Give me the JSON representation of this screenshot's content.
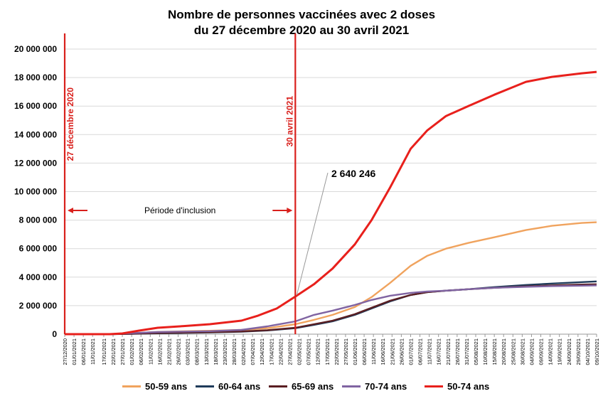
{
  "title_line1": "Nombre de personnes vaccinées avec 2 doses",
  "title_line2": "du 27 décembre 2020 au 30 avril 2021",
  "annotations": {
    "start_label": "27 décembre 2020",
    "end_label": "30 avril 2021",
    "period_label": "Période d'inclusion",
    "callout_value": "2 640 246"
  },
  "colors": {
    "50-59": "#f0a35e",
    "60-64": "#1f3b5a",
    "65-69": "#5a1e22",
    "70-74": "#8064a2",
    "50-74": "#e8201c",
    "vline": "#d9201c"
  },
  "chart_data": {
    "type": "line",
    "title": "Nombre de personnes vaccinées avec 2 doses du 27 décembre 2020 au 30 avril 2021",
    "xlabel": "",
    "ylabel": "",
    "ylim": [
      0,
      20000000
    ],
    "y_ticks": [
      "0",
      "2 000 000",
      "4 000 000",
      "6 000 000",
      "8 000 000",
      "10 000 000",
      "12 000 000",
      "14 000 000",
      "16 000 000",
      "18 000 000",
      "20 000 000"
    ],
    "x_ticks": [
      "27/12/2020",
      "01/01/2021",
      "06/01/2021",
      "11/01/2021",
      "17/01/2021",
      "22/01/2021",
      "27/01/2021",
      "01/02/2021",
      "06/02/2021",
      "11/02/2021",
      "16/02/2021",
      "21/02/2021",
      "26/02/2021",
      "03/03/2021",
      "08/03/2021",
      "13/03/2021",
      "18/03/2021",
      "23/03/2021",
      "28/03/2021",
      "02/04/2021",
      "07/04/2021",
      "12/04/2021",
      "17/04/2021",
      "22/04/2021",
      "27/04/2021",
      "02/05/2021",
      "07/05/2021",
      "12/05/2021",
      "17/05/2021",
      "22/05/2021",
      "27/05/2021",
      "01/06/2021",
      "06/06/2021",
      "11/06/2021",
      "16/06/2021",
      "21/06/2021",
      "26/06/2021",
      "01/07/2021",
      "06/07/2021",
      "11/07/2021",
      "16/07/2021",
      "21/07/2021",
      "26/07/2021",
      "31/07/2021",
      "05/08/2021",
      "10/08/2021",
      "15/08/2021",
      "20/08/2021",
      "25/08/2021",
      "30/08/2021",
      "04/09/2021",
      "09/09/2021",
      "14/09/2021",
      "19/09/2021",
      "24/09/2021",
      "29/09/2021",
      "04/10/2021",
      "09/10/2021"
    ],
    "grid": true,
    "legend_position": "bottom",
    "vertical_lines": [
      {
        "x": "2020-12-27",
        "label": "27 décembre 2020"
      },
      {
        "x": "2021-04-30",
        "label": "30 avril 2021"
      }
    ],
    "callout": {
      "series": "50-74 ans",
      "x": "2021-04-30",
      "value": 2640246
    },
    "series": [
      {
        "name": "50-59 ans",
        "color": "#f0a35e",
        "points": [
          [
            "2020-12-27",
            0
          ],
          [
            "2021-01-20",
            0
          ],
          [
            "2021-02-01",
            60000
          ],
          [
            "2021-02-15",
            160000
          ],
          [
            "2021-03-01",
            200000
          ],
          [
            "2021-03-15",
            240000
          ],
          [
            "2021-04-01",
            300000
          ],
          [
            "2021-04-15",
            420000
          ],
          [
            "2021-04-30",
            700000
          ],
          [
            "2021-05-10",
            1000000
          ],
          [
            "2021-05-20",
            1350000
          ],
          [
            "2021-06-01",
            1900000
          ],
          [
            "2021-06-10",
            2600000
          ],
          [
            "2021-06-20",
            3600000
          ],
          [
            "2021-07-01",
            4800000
          ],
          [
            "2021-07-10",
            5500000
          ],
          [
            "2021-07-20",
            6000000
          ],
          [
            "2021-08-01",
            6400000
          ],
          [
            "2021-08-15",
            6800000
          ],
          [
            "2021-09-01",
            7300000
          ],
          [
            "2021-09-15",
            7600000
          ],
          [
            "2021-10-01",
            7800000
          ],
          [
            "2021-10-09",
            7850000
          ]
        ]
      },
      {
        "name": "60-64 ans",
        "color": "#1f3b5a",
        "points": [
          [
            "2020-12-27",
            0
          ],
          [
            "2021-01-20",
            0
          ],
          [
            "2021-02-01",
            20000
          ],
          [
            "2021-02-15",
            60000
          ],
          [
            "2021-03-01",
            90000
          ],
          [
            "2021-03-15",
            120000
          ],
          [
            "2021-04-01",
            170000
          ],
          [
            "2021-04-15",
            260000
          ],
          [
            "2021-04-30",
            420000
          ],
          [
            "2021-05-10",
            650000
          ],
          [
            "2021-05-20",
            900000
          ],
          [
            "2021-06-01",
            1350000
          ],
          [
            "2021-06-10",
            1800000
          ],
          [
            "2021-06-20",
            2300000
          ],
          [
            "2021-07-01",
            2750000
          ],
          [
            "2021-07-10",
            2950000
          ],
          [
            "2021-07-20",
            3050000
          ],
          [
            "2021-08-01",
            3150000
          ],
          [
            "2021-08-15",
            3300000
          ],
          [
            "2021-09-01",
            3450000
          ],
          [
            "2021-09-15",
            3550000
          ],
          [
            "2021-10-01",
            3650000
          ],
          [
            "2021-10-09",
            3700000
          ]
        ]
      },
      {
        "name": "65-69 ans",
        "color": "#5a1e22",
        "points": [
          [
            "2020-12-27",
            0
          ],
          [
            "2021-01-20",
            0
          ],
          [
            "2021-02-01",
            30000
          ],
          [
            "2021-02-15",
            80000
          ],
          [
            "2021-03-01",
            110000
          ],
          [
            "2021-03-15",
            140000
          ],
          [
            "2021-04-01",
            190000
          ],
          [
            "2021-04-15",
            280000
          ],
          [
            "2021-04-30",
            450000
          ],
          [
            "2021-05-10",
            700000
          ],
          [
            "2021-05-20",
            950000
          ],
          [
            "2021-06-01",
            1400000
          ],
          [
            "2021-06-10",
            1850000
          ],
          [
            "2021-06-20",
            2350000
          ],
          [
            "2021-07-01",
            2750000
          ],
          [
            "2021-07-10",
            2950000
          ],
          [
            "2021-07-20",
            3050000
          ],
          [
            "2021-08-01",
            3150000
          ],
          [
            "2021-08-15",
            3250000
          ],
          [
            "2021-09-01",
            3350000
          ],
          [
            "2021-09-15",
            3420000
          ],
          [
            "2021-10-01",
            3480000
          ],
          [
            "2021-10-09",
            3500000
          ]
        ]
      },
      {
        "name": "70-74 ans",
        "color": "#8064a2",
        "points": [
          [
            "2020-12-27",
            0
          ],
          [
            "2021-01-20",
            0
          ],
          [
            "2021-02-01",
            70000
          ],
          [
            "2021-02-15",
            150000
          ],
          [
            "2021-03-01",
            180000
          ],
          [
            "2021-03-15",
            210000
          ],
          [
            "2021-04-01",
            300000
          ],
          [
            "2021-04-15",
            550000
          ],
          [
            "2021-04-30",
            900000
          ],
          [
            "2021-05-10",
            1350000
          ],
          [
            "2021-05-20",
            1650000
          ],
          [
            "2021-06-01",
            2050000
          ],
          [
            "2021-06-10",
            2400000
          ],
          [
            "2021-06-20",
            2700000
          ],
          [
            "2021-07-01",
            2900000
          ],
          [
            "2021-07-10",
            3000000
          ],
          [
            "2021-07-20",
            3050000
          ],
          [
            "2021-08-01",
            3150000
          ],
          [
            "2021-08-15",
            3250000
          ],
          [
            "2021-09-01",
            3320000
          ],
          [
            "2021-09-15",
            3370000
          ],
          [
            "2021-10-01",
            3400000
          ],
          [
            "2021-10-09",
            3420000
          ]
        ]
      },
      {
        "name": "50-74 ans",
        "color": "#e8201c",
        "points": [
          [
            "2020-12-27",
            0
          ],
          [
            "2021-01-20",
            0
          ],
          [
            "2021-01-27",
            50000
          ],
          [
            "2021-02-05",
            250000
          ],
          [
            "2021-02-15",
            450000
          ],
          [
            "2021-03-01",
            570000
          ],
          [
            "2021-03-15",
            700000
          ],
          [
            "2021-04-01",
            950000
          ],
          [
            "2021-04-10",
            1300000
          ],
          [
            "2021-04-20",
            1800000
          ],
          [
            "2021-04-30",
            2640246
          ],
          [
            "2021-05-10",
            3500000
          ],
          [
            "2021-05-20",
            4600000
          ],
          [
            "2021-06-01",
            6300000
          ],
          [
            "2021-06-10",
            8000000
          ],
          [
            "2021-06-20",
            10300000
          ],
          [
            "2021-07-01",
            13000000
          ],
          [
            "2021-07-10",
            14300000
          ],
          [
            "2021-07-20",
            15300000
          ],
          [
            "2021-08-01",
            16000000
          ],
          [
            "2021-08-15",
            16800000
          ],
          [
            "2021-09-01",
            17700000
          ],
          [
            "2021-09-15",
            18050000
          ],
          [
            "2021-10-01",
            18300000
          ],
          [
            "2021-10-09",
            18400000
          ]
        ]
      }
    ]
  }
}
